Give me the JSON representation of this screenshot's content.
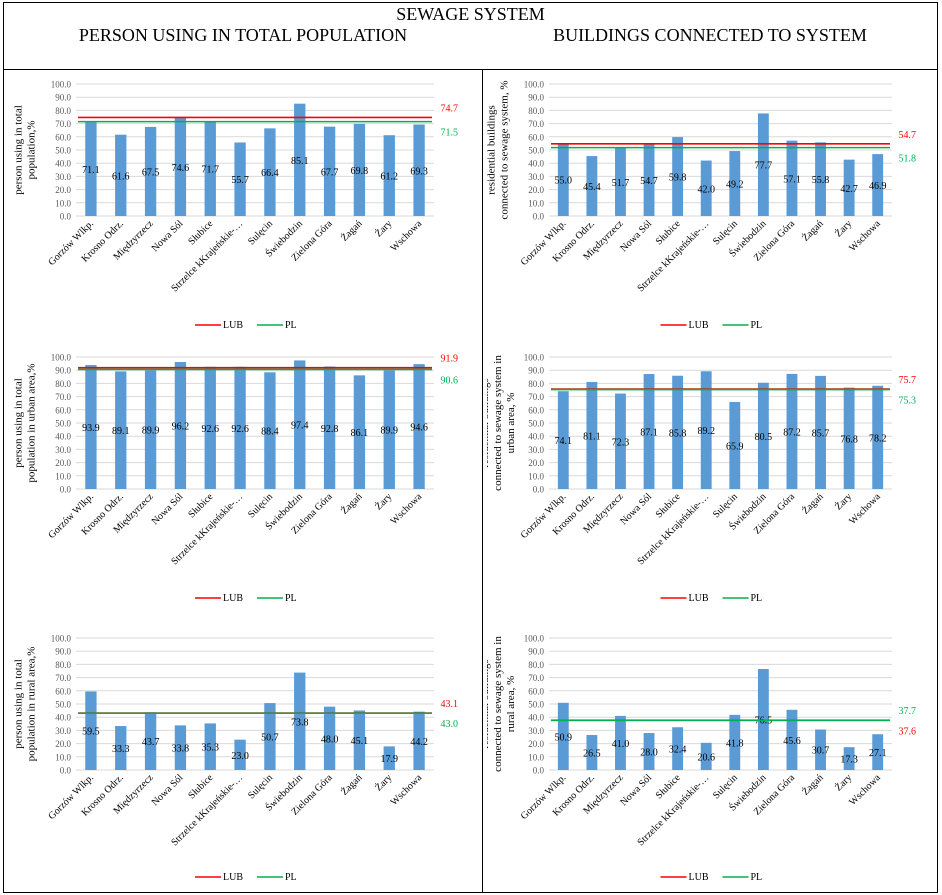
{
  "header": {
    "title": "SEWAGE SYSTEM",
    "left_column": "PERSON USING IN TOTAL POPULATION",
    "right_column": "BUILDINGS CONNECTED TO SYSTEM"
  },
  "colors": {
    "bar": "#5b9bd5",
    "lub": "#ff0000",
    "pl": "#00b050",
    "grid": "#d9d9d9",
    "axis_text": "#595959"
  },
  "chart_data": [
    {
      "type": "bar",
      "ylabel": "person using in total population,%",
      "ylim": [
        0,
        100
      ],
      "yticks": [
        "100.0",
        "90.0",
        "80.0",
        "70.0",
        "60.0",
        "50.0",
        "40.0",
        "30.0",
        "20.0",
        "10.0",
        "0.0"
      ],
      "categories": [
        "Gorzów Wlkp.",
        "Krosno Odrz.",
        "Międzyrzecz",
        "Nowa Sól",
        "Słubice",
        "Strzelce kKrajeńskie-…",
        "Sulęcin",
        "Świebodzin",
        "Zielona Góra",
        "Żagań",
        "Żary",
        "Wschowa"
      ],
      "values": [
        71.1,
        61.6,
        67.5,
        74.6,
        71.7,
        55.7,
        66.4,
        85.1,
        67.7,
        69.8,
        61.2,
        69.3
      ],
      "value_labels": [
        "71.1",
        "61.6",
        "67.5",
        "74.6",
        "71.7",
        "55.7",
        "66.4",
        "85.1",
        "67.7",
        "69.8",
        "61.2",
        "69.3"
      ],
      "lines": [
        {
          "name": "LUB",
          "value": 74.7,
          "label": "74.7"
        },
        {
          "name": "PL",
          "value": 71.5,
          "label": "71.5"
        }
      ],
      "legend": "bottom"
    },
    {
      "type": "bar",
      "ylabel": "residential buildings connected to sewage system, %",
      "ylim": [
        0,
        100
      ],
      "yticks": [
        "100.0",
        "90.0",
        "80.0",
        "70.0",
        "60.0",
        "50.0",
        "40.0",
        "30.0",
        "20.0",
        "10.0",
        "0.0"
      ],
      "categories": [
        "Gorzów Wlkp.",
        "Krosno Odrz.",
        "Międzyrzecz",
        "Nowa Sól",
        "Słubice",
        "Strzelce kKrajeńskie-…",
        "Sulęcin",
        "Świebodzin",
        "Zielona Góra",
        "Żagań",
        "Żary",
        "Wschowa"
      ],
      "values": [
        55.0,
        45.4,
        51.7,
        54.7,
        59.8,
        42.0,
        49.2,
        77.7,
        57.1,
        55.8,
        42.7,
        46.9
      ],
      "value_labels": [
        "55.0",
        "45.4",
        "51.7",
        "54.7",
        "59.8",
        "42.0",
        "49.2",
        "77.7",
        "57.1",
        "55.8",
        "42.7",
        "46.9"
      ],
      "lines": [
        {
          "name": "LUB",
          "value": 54.7,
          "label": "54.7"
        },
        {
          "name": "PL",
          "value": 51.8,
          "label": "51.8"
        }
      ],
      "legend": "bottom"
    },
    {
      "type": "bar",
      "ylabel": "person using in total population in urban area,%",
      "ylim": [
        0,
        100
      ],
      "yticks": [
        "100.0",
        "90.0",
        "80.0",
        "70.0",
        "60.0",
        "50.0",
        "40.0",
        "30.0",
        "20.0",
        "10.0",
        "0.0"
      ],
      "categories": [
        "Gorzów Wlkp.",
        "Krosno Odrz.",
        "Międzyrzecz",
        "Nowa Sól",
        "Słubice",
        "Strzelce kKrajeńskie-…",
        "Sulęcin",
        "Świebodzin",
        "Zielona Góra",
        "Żagań",
        "Żary",
        "Wschowa"
      ],
      "values": [
        93.9,
        89.1,
        89.9,
        96.2,
        92.6,
        92.6,
        88.4,
        97.4,
        92.8,
        86.1,
        89.9,
        94.6
      ],
      "value_labels": [
        "93.9",
        "89.1",
        "89.9",
        "96.2",
        "92.6",
        "92.6",
        "88.4",
        "97.4",
        "92.8",
        "86.1",
        "89.9",
        "94.6"
      ],
      "lines": [
        {
          "name": "LUB",
          "value": 91.9,
          "label": "91.9"
        },
        {
          "name": "PL",
          "value": 90.6,
          "label": "90.6"
        }
      ],
      "legend": "bottom"
    },
    {
      "type": "bar",
      "ylabel": "residential buildings connected to sewage system in urban area, %",
      "ylim": [
        0,
        100
      ],
      "yticks": [
        "100.0",
        "90.0",
        "80.0",
        "70.0",
        "60.0",
        "50.0",
        "40.0",
        "30.0",
        "20.0",
        "10.0",
        "0.0"
      ],
      "categories": [
        "Gorzów Wlkp.",
        "Krosno Odrz.",
        "Międzyrzecz",
        "Nowa Sól",
        "Słubice",
        "Strzelce kKrajeńskie-…",
        "Sulęcin",
        "Świebodzin",
        "Zielona Góra",
        "Żagań",
        "Żary",
        "Wschowa"
      ],
      "values": [
        74.1,
        81.1,
        72.3,
        87.1,
        85.8,
        89.2,
        65.9,
        80.5,
        87.2,
        85.7,
        76.8,
        78.2
      ],
      "value_labels": [
        "74.1",
        "81.1",
        "72.3",
        "87.1",
        "85.8",
        "89.2",
        "65.9",
        "80.5",
        "87.2",
        "85.7",
        "76.8",
        "78.2"
      ],
      "lines": [
        {
          "name": "LUB",
          "value": 75.7,
          "label": "75.7"
        },
        {
          "name": "PL",
          "value": 75.3,
          "label": "75.3"
        }
      ],
      "legend": "bottom"
    },
    {
      "type": "bar",
      "ylabel": "person using in total population in rural area,%",
      "ylim": [
        0,
        100
      ],
      "yticks": [
        "100.0",
        "90.0",
        "80.0",
        "70.0",
        "60.0",
        "50.0",
        "40.0",
        "30.0",
        "20.0",
        "10.0",
        "0.0"
      ],
      "categories": [
        "Gorzów Wlkp.",
        "Krosno Odrz.",
        "Międzyrzecz",
        "Nowa Sól",
        "Słubice",
        "Strzelce kKrajeńskie-…",
        "Sulęcin",
        "Świebodzin",
        "Zielona Góra",
        "Żagań",
        "Żary",
        "Wschowa"
      ],
      "values": [
        59.5,
        33.3,
        43.7,
        33.8,
        35.3,
        23.0,
        50.7,
        73.8,
        48.0,
        45.1,
        17.9,
        44.2
      ],
      "value_labels": [
        "59.5",
        "33.3",
        "43.7",
        "33.8",
        "35.3",
        "23.0",
        "50.7",
        "73.8",
        "48.0",
        "45.1",
        "17.9",
        "44.2"
      ],
      "lines": [
        {
          "name": "LUB",
          "value": 43.1,
          "label": "43.1"
        },
        {
          "name": "PL",
          "value": 43.0,
          "label": "43.0"
        }
      ],
      "legend": "bottom"
    },
    {
      "type": "bar",
      "ylabel": "residential buildings connected to sewage system in rural area, %",
      "ylim": [
        0,
        100
      ],
      "yticks": [
        "100.0",
        "90.0",
        "80.0",
        "70.0",
        "60.0",
        "50.0",
        "40.0",
        "30.0",
        "20.0",
        "10.0",
        "0.0"
      ],
      "categories": [
        "Gorzów Wlkp.",
        "Krosno Odrz.",
        "Międzyrzecz",
        "Nowa Sól",
        "Słubice",
        "Strzelce kKrajeńskie-…",
        "Sulęcin",
        "Świebodzin",
        "Zielona Góra",
        "Żagań",
        "Żary",
        "Wschowa"
      ],
      "values": [
        50.9,
        26.5,
        41.0,
        28.0,
        32.4,
        20.6,
        41.8,
        76.5,
        45.6,
        30.7,
        17.3,
        27.1
      ],
      "value_labels": [
        "50.9",
        "26.5",
        "41.0",
        "28.0",
        "32.4",
        "20.6",
        "41.8",
        "76.5",
        "45.6",
        "30.7",
        "17.3",
        "27.1"
      ],
      "lines": [
        {
          "name": "LUB",
          "value": 37.6,
          "label": "37.6"
        },
        {
          "name": "PL",
          "value": 37.7,
          "label": "37.7"
        }
      ],
      "legend": "bottom"
    }
  ]
}
